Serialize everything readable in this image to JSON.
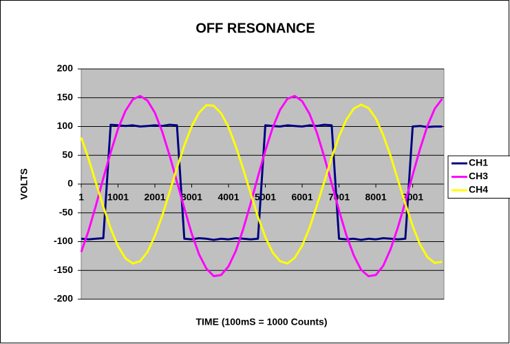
{
  "chart_data": {
    "type": "line",
    "title": "OFF RESONANCE",
    "x_label": "TIME (100mS = 1000 Counts)",
    "y_label": "VOLTS",
    "x": [
      1,
      201,
      401,
      601,
      801,
      1001,
      1201,
      1401,
      1601,
      1801,
      2001,
      2201,
      2401,
      2601,
      2801,
      3001,
      3201,
      3401,
      3601,
      3801,
      4001,
      4201,
      4401,
      4601,
      4801,
      5001,
      5201,
      5401,
      5601,
      5801,
      6001,
      6201,
      6401,
      6601,
      6801,
      7001,
      7201,
      7401,
      7601,
      7801,
      8001,
      8201,
      8401,
      8601,
      8801,
      9001,
      9201,
      9401,
      9601,
      9801
    ],
    "series": [
      {
        "name": "CH1",
        "color": "#000080",
        "values": [
          -95,
          -96,
          -95,
          -94,
          103,
          102,
          101,
          102,
          100,
          101,
          102,
          101,
          103,
          102,
          -95,
          -96,
          -94,
          -95,
          -97,
          -95,
          -96,
          -94,
          -95,
          -96,
          -95,
          102,
          101,
          100,
          102,
          101,
          100,
          102,
          101,
          103,
          102,
          -95,
          -96,
          -95,
          -97,
          -95,
          -96,
          -94,
          -95,
          -96,
          -95,
          100,
          101,
          99,
          100,
          100
        ]
      },
      {
        "name": "CH3",
        "color": "#ff00ff",
        "values": [
          -118,
          -81,
          -37,
          10,
          55,
          96,
          127,
          147,
          153,
          145,
          124,
          91,
          50,
          4,
          -42,
          -86,
          -122,
          -147,
          -160,
          -158,
          -143,
          -116,
          -78,
          -34,
          13,
          58,
          98,
          129,
          148,
          153,
          144,
          122,
          89,
          47,
          1,
          -46,
          -89,
          -124,
          -149,
          -160,
          -158,
          -142,
          -113,
          -75,
          -31,
          16,
          61,
          101,
          131,
          148
        ]
      },
      {
        "name": "CH4",
        "color": "#ffff00",
        "values": [
          81,
          44,
          2,
          -39,
          -77,
          -108,
          -129,
          -138,
          -134,
          -118,
          -90,
          -55,
          -14,
          28,
          67,
          100,
          124,
          137,
          136,
          123,
          99,
          65,
          26,
          -16,
          -57,
          -92,
          -119,
          -134,
          -138,
          -128,
          -107,
          -76,
          -37,
          4,
          46,
          83,
          112,
          131,
          138,
          132,
          114,
          85,
          49,
          7,
          -34,
          -73,
          -105,
          -127,
          -137,
          -135
        ]
      }
    ],
    "xlim": [
      1,
      9850
    ],
    "xticks": [
      1,
      1001,
      2001,
      3001,
      4001,
      5001,
      6001,
      7001,
      8001,
      9001
    ],
    "ylim": [
      -200,
      200
    ],
    "yticks": [
      200,
      150,
      100,
      50,
      0,
      -50,
      -100,
      -150,
      -200
    ],
    "grid": true,
    "legend": "right"
  }
}
